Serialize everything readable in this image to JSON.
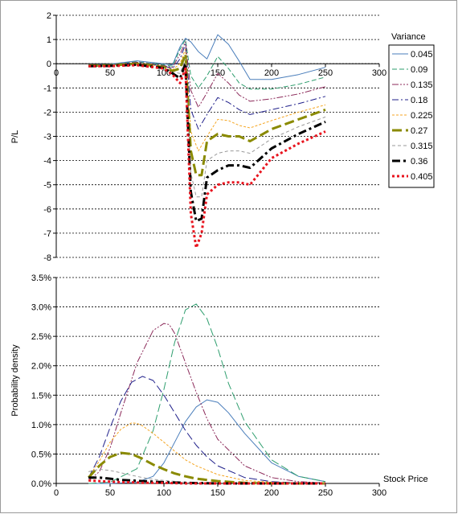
{
  "chart_data": [
    {
      "type": "line",
      "title": "",
      "xlabel": "",
      "ylabel": "P/L",
      "xlim": [
        0,
        300
      ],
      "ylim": [
        -8,
        2
      ],
      "xticks": [
        "0",
        "50",
        "100",
        "150",
        "200",
        "250",
        "300"
      ],
      "yticks": [
        "2",
        "1",
        "0",
        "-1",
        "-2",
        "-3",
        "-4",
        "-5",
        "-6",
        "-7",
        "-8"
      ],
      "grid": "horizontal dashed",
      "legend": {
        "title": "Variance",
        "placement": "right"
      },
      "series": [
        {
          "name": "0.045",
          "color": "#4a7ebb",
          "dash": "solid",
          "x": [
            30,
            50,
            75,
            100,
            108,
            115,
            120,
            125,
            132,
            140,
            150,
            160,
            170,
            180,
            200,
            225,
            250
          ],
          "y": [
            -0.05,
            -0.02,
            0.12,
            0.0,
            -0.05,
            0.7,
            1.05,
            0.9,
            0.5,
            0.2,
            1.2,
            0.8,
            0.1,
            -0.65,
            -0.65,
            -0.45,
            -0.15
          ]
        },
        {
          "name": "0.09",
          "color": "#2e9e6e",
          "dash": "6,3",
          "x": [
            30,
            50,
            75,
            100,
            108,
            115,
            120,
            125,
            132,
            140,
            150,
            160,
            170,
            180,
            200,
            225,
            250
          ],
          "y": [
            -0.05,
            -0.03,
            0.08,
            -0.05,
            -0.1,
            0.6,
            1.0,
            -0.5,
            -1.0,
            -0.5,
            0.3,
            -0.2,
            -0.8,
            -1.05,
            -1.05,
            -0.85,
            -0.55
          ]
        },
        {
          "name": "0.135",
          "color": "#8c2a5a",
          "dash": "8,2,2,2,2,2",
          "x": [
            30,
            50,
            75,
            100,
            108,
            115,
            120,
            125,
            132,
            140,
            150,
            160,
            170,
            180,
            200,
            225,
            250
          ],
          "y": [
            -0.06,
            -0.04,
            0.06,
            -0.08,
            -0.15,
            0.4,
            0.9,
            -1.1,
            -1.8,
            -1.2,
            -0.4,
            -0.8,
            -1.3,
            -1.55,
            -1.45,
            -1.25,
            -0.95
          ]
        },
        {
          "name": "0.18",
          "color": "#1f1f8a",
          "dash": "8,3,2,3",
          "x": [
            30,
            50,
            75,
            100,
            108,
            115,
            120,
            125,
            132,
            140,
            150,
            160,
            170,
            180,
            200,
            225,
            250
          ],
          "y": [
            -0.07,
            -0.05,
            0.04,
            -0.1,
            -0.2,
            0.2,
            0.8,
            -1.9,
            -2.7,
            -2.1,
            -1.4,
            -1.6,
            -1.9,
            -2.1,
            -1.9,
            -1.65,
            -1.35
          ]
        },
        {
          "name": "0.225",
          "color": "#f5a623",
          "dash": "3,2",
          "x": [
            30,
            50,
            75,
            100,
            108,
            115,
            120,
            125,
            132,
            140,
            150,
            160,
            170,
            180,
            200,
            225,
            250
          ],
          "y": [
            -0.08,
            -0.06,
            0.02,
            -0.12,
            -0.25,
            0.0,
            0.6,
            -2.8,
            -3.6,
            -3.0,
            -2.3,
            -2.35,
            -2.55,
            -2.65,
            -2.35,
            -2.0,
            -1.7
          ]
        },
        {
          "name": "0.27",
          "color": "#8a8a00",
          "dash": "12,5",
          "x": [
            30,
            50,
            75,
            100,
            108,
            115,
            120,
            125,
            130,
            135,
            140,
            150,
            160,
            170,
            180,
            200,
            225,
            250
          ],
          "y": [
            -0.08,
            -0.07,
            0.0,
            -0.14,
            -0.3,
            -0.2,
            0.4,
            -3.6,
            -4.6,
            -4.6,
            -3.2,
            -2.9,
            -3.0,
            -3.0,
            -3.2,
            -2.7,
            -2.3,
            -1.9
          ]
        },
        {
          "name": "0.315",
          "color": "#9a9a9a",
          "dash": "4,3",
          "x": [
            30,
            50,
            75,
            100,
            108,
            115,
            120,
            125,
            130,
            135,
            140,
            150,
            160,
            170,
            180,
            200,
            225,
            250
          ],
          "y": [
            -0.09,
            -0.08,
            -0.02,
            -0.16,
            -0.35,
            -0.4,
            0.2,
            -4.5,
            -5.5,
            -5.5,
            -4.0,
            -3.7,
            -3.6,
            -3.6,
            -3.7,
            -3.1,
            -2.6,
            -2.2
          ]
        },
        {
          "name": "0.36",
          "color": "#000000",
          "dash": "10,4,3,4",
          "x": [
            30,
            50,
            75,
            100,
            108,
            115,
            120,
            125,
            130,
            135,
            140,
            150,
            160,
            170,
            180,
            200,
            225,
            250
          ],
          "y": [
            -0.1,
            -0.09,
            -0.04,
            -0.18,
            -0.4,
            -0.6,
            0.0,
            -5.3,
            -6.5,
            -6.4,
            -4.7,
            -4.4,
            -4.2,
            -4.2,
            -4.3,
            -3.5,
            -2.9,
            -2.4
          ]
        },
        {
          "name": "0.405",
          "color": "#e8141e",
          "dash": "3,3",
          "x": [
            30,
            50,
            75,
            100,
            108,
            115,
            120,
            125,
            130,
            135,
            140,
            150,
            160,
            170,
            180,
            200,
            225,
            250
          ],
          "y": [
            -0.1,
            -0.1,
            -0.06,
            -0.2,
            -0.45,
            -0.8,
            -0.2,
            -6.2,
            -7.6,
            -7.0,
            -5.4,
            -5.0,
            -4.9,
            -4.9,
            -5.0,
            -3.9,
            -3.3,
            -2.8
          ]
        }
      ]
    },
    {
      "type": "line",
      "title": "",
      "xlabel": "Stock Price",
      "ylabel": "Probability density",
      "xlim": [
        0,
        300
      ],
      "ylim": [
        0,
        3.5
      ],
      "xticks": [
        "0",
        "50",
        "100",
        "150",
        "200",
        "250",
        "300"
      ],
      "yticks": [
        "3.5%",
        "3.0%",
        "2.5%",
        "2.0%",
        "1.5%",
        "1.0%",
        "0.5%",
        "0.0%"
      ],
      "grid": "horizontal dashed",
      "series": [
        {
          "name": "0.045",
          "color": "#4a7ebb",
          "dash": "solid",
          "x": [
            30,
            50,
            75,
            90,
            100,
            110,
            120,
            130,
            140,
            150,
            160,
            175,
            200,
            225,
            250
          ],
          "y": [
            0.0,
            0.0,
            0.02,
            0.12,
            0.35,
            0.7,
            1.05,
            1.3,
            1.42,
            1.38,
            1.2,
            0.85,
            0.35,
            0.12,
            0.03
          ]
        },
        {
          "name": "0.09",
          "color": "#2e9e6e",
          "dash": "10,4",
          "x": [
            30,
            50,
            75,
            90,
            100,
            110,
            120,
            130,
            140,
            150,
            160,
            175,
            200,
            225,
            250
          ],
          "y": [
            0.0,
            0.02,
            0.25,
            0.9,
            1.6,
            2.4,
            2.95,
            3.05,
            2.8,
            2.3,
            1.7,
            1.05,
            0.4,
            0.12,
            0.03
          ]
        },
        {
          "name": "0.135",
          "color": "#8c2a5a",
          "dash": "8,2,2,2,2,2",
          "x": [
            30,
            40,
            50,
            60,
            75,
            90,
            100,
            105,
            110,
            120,
            130,
            140,
            150,
            175,
            200,
            225,
            250
          ],
          "y": [
            0.05,
            0.2,
            0.6,
            1.2,
            2.05,
            2.6,
            2.72,
            2.7,
            2.55,
            2.05,
            1.55,
            1.1,
            0.75,
            0.3,
            0.1,
            0.03,
            0.01
          ]
        },
        {
          "name": "0.18",
          "color": "#1f1f8a",
          "dash": "10,4",
          "x": [
            30,
            40,
            50,
            60,
            70,
            80,
            90,
            100,
            110,
            120,
            130,
            140,
            150,
            175,
            200,
            225,
            250
          ],
          "y": [
            0.1,
            0.45,
            0.95,
            1.4,
            1.72,
            1.82,
            1.75,
            1.5,
            1.2,
            0.9,
            0.65,
            0.45,
            0.3,
            0.1,
            0.03,
            0.01,
            0.0
          ]
        },
        {
          "name": "0.225",
          "color": "#f5a623",
          "dash": "3,2",
          "x": [
            30,
            40,
            50,
            60,
            70,
            75,
            80,
            90,
            100,
            110,
            120,
            130,
            150,
            175,
            200,
            250
          ],
          "y": [
            0.1,
            0.38,
            0.7,
            0.92,
            1.03,
            1.02,
            0.98,
            0.85,
            0.7,
            0.55,
            0.4,
            0.3,
            0.15,
            0.05,
            0.02,
            0.0
          ]
        },
        {
          "name": "0.27",
          "color": "#8a8a00",
          "dash": "12,5",
          "x": [
            30,
            40,
            50,
            60,
            70,
            80,
            90,
            100,
            110,
            120,
            130,
            150,
            175,
            200,
            250
          ],
          "y": [
            0.1,
            0.3,
            0.45,
            0.52,
            0.5,
            0.42,
            0.32,
            0.24,
            0.17,
            0.12,
            0.08,
            0.04,
            0.01,
            0.0,
            0.0
          ]
        },
        {
          "name": "0.315",
          "color": "#9a9a9a",
          "dash": "4,3",
          "x": [
            30,
            40,
            50,
            60,
            70,
            80,
            90,
            100,
            120,
            150,
            200,
            250
          ],
          "y": [
            0.2,
            0.24,
            0.22,
            0.18,
            0.14,
            0.1,
            0.07,
            0.05,
            0.02,
            0.01,
            0.0,
            0.0
          ]
        },
        {
          "name": "0.36",
          "color": "#000000",
          "dash": "10,4,3,4",
          "x": [
            30,
            40,
            50,
            60,
            70,
            80,
            100,
            120,
            150,
            200,
            250
          ],
          "y": [
            0.1,
            0.1,
            0.08,
            0.06,
            0.05,
            0.04,
            0.02,
            0.01,
            0.0,
            0.0,
            0.0
          ]
        },
        {
          "name": "0.405",
          "color": "#e8141e",
          "dash": "3,3",
          "x": [
            30,
            40,
            50,
            60,
            70,
            80,
            100,
            120,
            150,
            200,
            250
          ],
          "y": [
            0.05,
            0.04,
            0.03,
            0.02,
            0.02,
            0.01,
            0.01,
            0.0,
            0.0,
            0.0,
            0.0
          ]
        }
      ]
    }
  ]
}
